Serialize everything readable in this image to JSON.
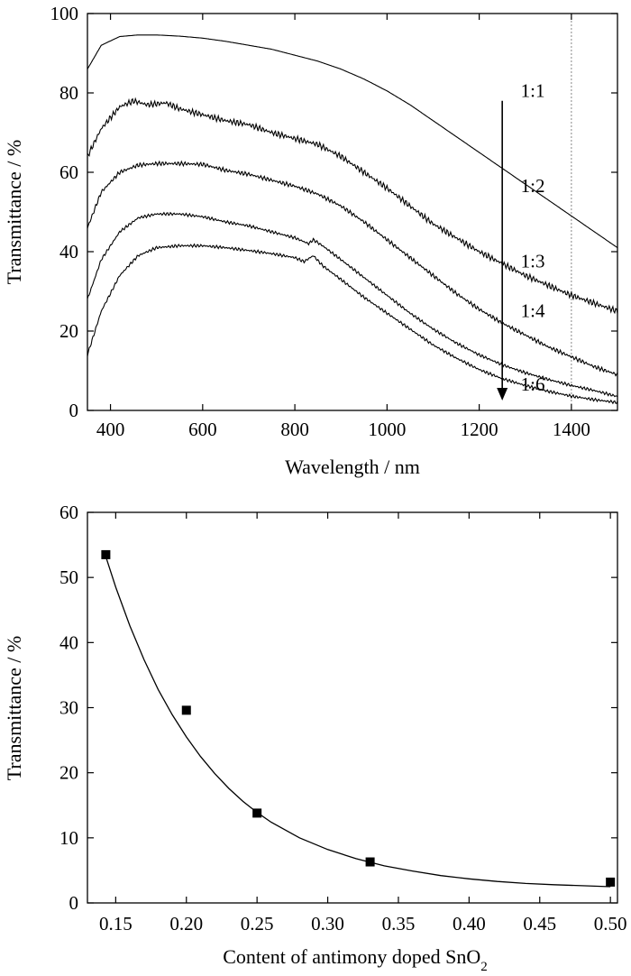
{
  "chart_data": [
    {
      "type": "line",
      "xlabel": "Wavelength / nm",
      "ylabel": "Transmittance / %",
      "xlim": [
        350,
        1500
      ],
      "ylim": [
        0,
        100
      ],
      "xticks": [
        400,
        600,
        800,
        1000,
        1200,
        1400
      ],
      "yticks": [
        0,
        20,
        40,
        60,
        80,
        100
      ],
      "grid": false,
      "reference_line_x": 1400,
      "arrow": {
        "x": 1250,
        "from_y": 78,
        "to_y": 2.5,
        "direction": "down"
      },
      "series": [
        {
          "name": "1:1",
          "label_pos": [
            1290,
            79
          ],
          "x": [
            350,
            380,
            420,
            460,
            500,
            550,
            600,
            650,
            700,
            750,
            800,
            850,
            900,
            950,
            1000,
            1050,
            1100,
            1150,
            1200,
            1250,
            1300,
            1350,
            1400,
            1450,
            1500
          ],
          "y": [
            86,
            92,
            94.2,
            94.6,
            94.6,
            94.3,
            93.8,
            93,
            92,
            91,
            89.5,
            88,
            86,
            83.5,
            80.5,
            77,
            73,
            69,
            65,
            61,
            57,
            53,
            49,
            45,
            41
          ]
        },
        {
          "name": "1:2",
          "label_pos": [
            1290,
            55
          ],
          "x": [
            350,
            380,
            420,
            450,
            480,
            520,
            550,
            600,
            650,
            700,
            750,
            800,
            850,
            900,
            950,
            1000,
            1050,
            1100,
            1150,
            1200,
            1250,
            1300,
            1350,
            1400,
            1450,
            1500
          ],
          "y": [
            64,
            71,
            76.5,
            78,
            77,
            77.5,
            76,
            74.5,
            73,
            72,
            70,
            68.5,
            67,
            64,
            60,
            56,
            51.5,
            47,
            43.5,
            40,
            37,
            34,
            31.5,
            29,
            27,
            25
          ],
          "noise": 0.8
        },
        {
          "name": "1:3",
          "label_pos": [
            1290,
            36
          ],
          "x": [
            350,
            380,
            420,
            460,
            500,
            550,
            600,
            650,
            700,
            750,
            800,
            850,
            900,
            950,
            1000,
            1050,
            1100,
            1150,
            1200,
            1250,
            1300,
            1350,
            1400,
            1450,
            1500
          ],
          "y": [
            46,
            55,
            60,
            61.8,
            62.2,
            62.2,
            62,
            60.5,
            59.5,
            58,
            56.5,
            54.5,
            51.5,
            47.5,
            43,
            38.5,
            34,
            29.5,
            25.5,
            22,
            19,
            16,
            13.5,
            11,
            9
          ],
          "noise": 0.55
        },
        {
          "name": "1:4",
          "label_pos": [
            1290,
            23.5
          ],
          "x": [
            350,
            380,
            420,
            460,
            500,
            550,
            600,
            650,
            700,
            750,
            800,
            830,
            840,
            860,
            900,
            950,
            1000,
            1050,
            1100,
            1150,
            1200,
            1250,
            1300,
            1350,
            1400,
            1450,
            1500
          ],
          "y": [
            28,
            38,
            45,
            48.5,
            49.5,
            49.5,
            48.8,
            47.5,
            46.5,
            45,
            43.5,
            42,
            43,
            41.5,
            38,
            33.5,
            29,
            24.5,
            20.5,
            17,
            14,
            11.5,
            9.5,
            7.8,
            6.3,
            5,
            3.5
          ],
          "noise": 0.4
        },
        {
          "name": "1:6",
          "label_pos": [
            1290,
            5
          ],
          "x": [
            350,
            380,
            420,
            460,
            500,
            550,
            600,
            650,
            700,
            750,
            800,
            820,
            840,
            860,
            900,
            950,
            1000,
            1050,
            1100,
            1150,
            1200,
            1250,
            1300,
            1350,
            1400,
            1450,
            1500
          ],
          "y": [
            14,
            25,
            34,
            39,
            41,
            41.5,
            41.5,
            41,
            40.3,
            39.5,
            38.5,
            37.5,
            39,
            36.5,
            33,
            28.5,
            24.5,
            20.5,
            16.5,
            13.2,
            10.3,
            8,
            6.3,
            4.8,
            3.6,
            2.7,
            2
          ],
          "noise": 0.4
        }
      ]
    },
    {
      "type": "scatter",
      "xlabel": "Content of antimony doped SnO",
      "xlabel_sub": "2",
      "ylabel": "Transmittance / %",
      "xlim": [
        0.13,
        0.505
      ],
      "ylim": [
        0,
        60
      ],
      "xticks": [
        "0.15",
        "0.20",
        "0.25",
        "0.30",
        "0.35",
        "0.40",
        "0.45",
        "0.50"
      ],
      "yticks": [
        0,
        10,
        20,
        30,
        40,
        50,
        60
      ],
      "grid": false,
      "points": [
        {
          "x": 0.143,
          "y": 53.5
        },
        {
          "x": 0.2,
          "y": 29.6
        },
        {
          "x": 0.25,
          "y": 13.8
        },
        {
          "x": 0.33,
          "y": 6.3
        },
        {
          "x": 0.5,
          "y": 3.2
        }
      ],
      "fit_curve": {
        "x": [
          0.143,
          0.15,
          0.16,
          0.17,
          0.18,
          0.19,
          0.2,
          0.21,
          0.22,
          0.23,
          0.24,
          0.25,
          0.26,
          0.28,
          0.3,
          0.32,
          0.34,
          0.36,
          0.38,
          0.4,
          0.42,
          0.44,
          0.46,
          0.48,
          0.5
        ],
        "y": [
          53.2,
          48.5,
          42.6,
          37.4,
          32.8,
          28.9,
          25.5,
          22.5,
          19.9,
          17.6,
          15.6,
          13.9,
          12.4,
          10.0,
          8.2,
          6.8,
          5.7,
          4.9,
          4.2,
          3.7,
          3.3,
          3.0,
          2.8,
          2.65,
          2.5
        ]
      }
    }
  ]
}
